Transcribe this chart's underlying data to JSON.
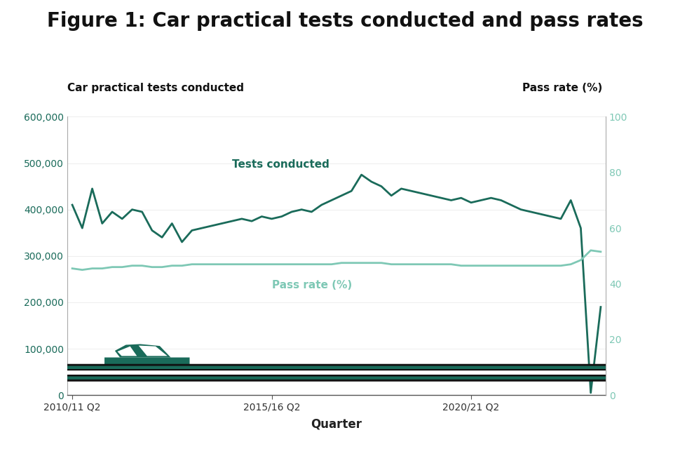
{
  "title": "Figure 1: Car practical tests conducted and pass rates",
  "ylabel_left": "Car practical tests conducted",
  "ylabel_right": "Pass rate (%)",
  "xlabel": "Quarter",
  "x_tick_labels": [
    "2010/11 Q2",
    "2015/16 Q2",
    "2020/21 Q2"
  ],
  "x_tick_positions": [
    0,
    20,
    40
  ],
  "ylim_left": [
    0,
    600000
  ],
  "ylim_right": [
    0,
    100
  ],
  "yticks_left": [
    0,
    100000,
    200000,
    300000,
    400000,
    500000,
    600000
  ],
  "yticks_right": [
    0,
    20,
    40,
    60,
    80,
    100
  ],
  "bg_color": "#ffffff",
  "line_dark_color": "#1a6b5a",
  "line_light_color": "#7ec8b5",
  "label_tests": "Tests conducted",
  "label_pass": "Pass rate (%)",
  "tests_conducted": [
    410000,
    360000,
    445000,
    370000,
    395000,
    380000,
    400000,
    395000,
    355000,
    340000,
    370000,
    330000,
    355000,
    360000,
    365000,
    370000,
    375000,
    380000,
    375000,
    385000,
    380000,
    385000,
    395000,
    400000,
    395000,
    410000,
    420000,
    430000,
    440000,
    475000,
    460000,
    450000,
    430000,
    445000,
    440000,
    435000,
    430000,
    425000,
    420000,
    425000,
    415000,
    420000,
    425000,
    420000,
    410000,
    400000,
    395000,
    390000,
    385000,
    380000,
    420000,
    360000,
    5000,
    190000
  ],
  "pass_rate": [
    45.5,
    45.0,
    45.5,
    45.5,
    46.0,
    46.0,
    46.5,
    46.5,
    46.0,
    46.0,
    46.5,
    46.5,
    47.0,
    47.0,
    47.0,
    47.0,
    47.0,
    47.0,
    47.0,
    47.0,
    47.0,
    47.0,
    47.0,
    47.0,
    47.0,
    47.0,
    47.0,
    47.5,
    47.5,
    47.5,
    47.5,
    47.5,
    47.0,
    47.0,
    47.0,
    47.0,
    47.0,
    47.0,
    47.0,
    46.5,
    46.5,
    46.5,
    46.5,
    46.5,
    46.5,
    46.5,
    46.5,
    46.5,
    46.5,
    46.5,
    47.0,
    48.5,
    52.0,
    51.5
  ],
  "n_points": 54,
  "title_fontsize": 20,
  "subtitle_fontsize": 11,
  "tick_fontsize": 10,
  "label_fontsize": 11
}
